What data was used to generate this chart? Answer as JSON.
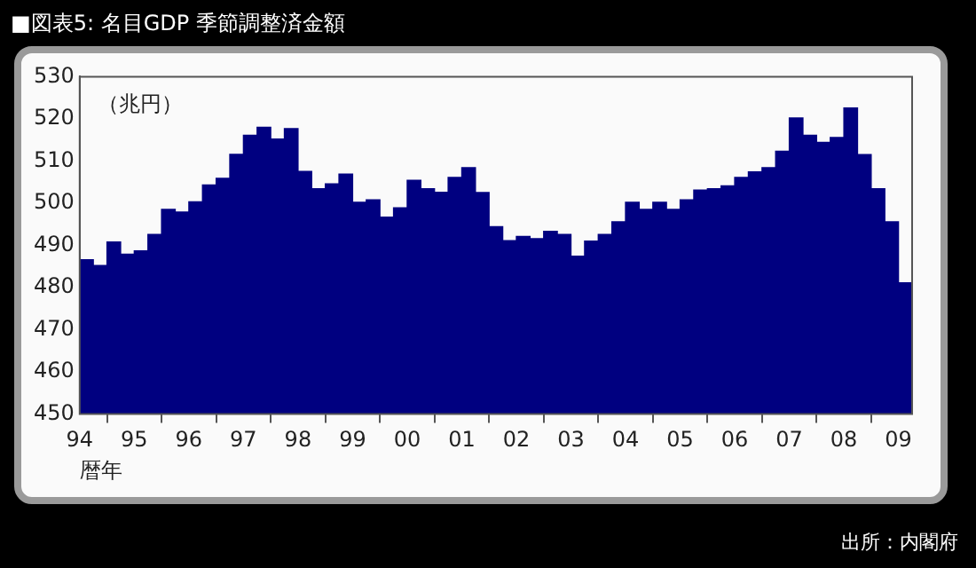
{
  "chart_data": {
    "type": "bar",
    "title": "■図表5: 名目GDP 季節調整済金額",
    "ylabel": "（兆円）",
    "xlabel": "暦年",
    "annotations": [
      "出所：内閣府"
    ],
    "x": [
      1994.125,
      1994.375,
      1994.625,
      1994.875,
      1995.125,
      1995.375,
      1995.625,
      1995.875,
      1996.125,
      1996.375,
      1996.625,
      1996.875,
      1997.125,
      1997.375,
      1997.625,
      1997.875,
      1998.125,
      1998.375,
      1998.625,
      1998.875,
      1999.125,
      1999.375,
      1999.625,
      1999.875,
      2000.125,
      2000.375,
      2000.625,
      2000.875,
      2001.125,
      2001.375,
      2001.625,
      2001.875,
      2002.125,
      2002.375,
      2002.625,
      2002.875,
      2003.125,
      2003.375,
      2003.625,
      2003.875,
      2004.125,
      2004.375,
      2004.625,
      2004.875,
      2005.125,
      2005.375,
      2005.625,
      2005.875,
      2006.125,
      2006.375,
      2006.625,
      2006.875,
      2007.125,
      2007.375,
      2007.625,
      2007.875,
      2008.125,
      2008.375,
      2008.625,
      2008.875,
      2009.125
    ],
    "values": [
      486.6,
      485.2,
      490.8,
      487.9,
      488.7,
      492.6,
      498.5,
      497.9,
      500.3,
      504.3,
      505.9,
      511.6,
      516.1,
      518,
      515.2,
      517.7,
      507.5,
      503.4,
      504.6,
      506.9,
      500.2,
      500.8,
      496.7,
      498.9,
      505.4,
      503.4,
      502.6,
      506.1,
      508.4,
      502.5,
      494.4,
      491.1,
      492.1,
      491.6,
      493.3,
      492.6,
      487.4,
      491,
      492.6,
      495.6,
      500.2,
      498.5,
      500.2,
      498.5,
      500.8,
      503.1,
      503.4,
      504.1,
      506.1,
      507.4,
      508.4,
      512.3,
      520.2,
      516.1,
      514.4,
      515.6,
      522.6,
      511.5,
      503.4,
      495.6,
      481.1
    ],
    "color": "#000080",
    "ylim": [
      450,
      530
    ],
    "yticks": [
      450,
      460,
      470,
      480,
      490,
      500,
      510,
      520,
      530
    ],
    "xlim": [
      1994,
      2009.25
    ],
    "xticks": [
      {
        "value": 1994,
        "label": "94"
      },
      {
        "value": 1995,
        "label": "95"
      },
      {
        "value": 1996,
        "label": "96"
      },
      {
        "value": 1997,
        "label": "97"
      },
      {
        "value": 1998,
        "label": "98"
      },
      {
        "value": 1999,
        "label": "99"
      },
      {
        "value": 2000,
        "label": "00"
      },
      {
        "value": 2001,
        "label": "01"
      },
      {
        "value": 2002,
        "label": "02"
      },
      {
        "value": 2003,
        "label": "03"
      },
      {
        "value": 2004,
        "label": "04"
      },
      {
        "value": 2005,
        "label": "05"
      },
      {
        "value": 2006,
        "label": "06"
      },
      {
        "value": 2007,
        "label": "07"
      },
      {
        "value": 2008,
        "label": "08"
      },
      {
        "value": 2009,
        "label": "09"
      }
    ],
    "grid": false,
    "legend": false
  }
}
